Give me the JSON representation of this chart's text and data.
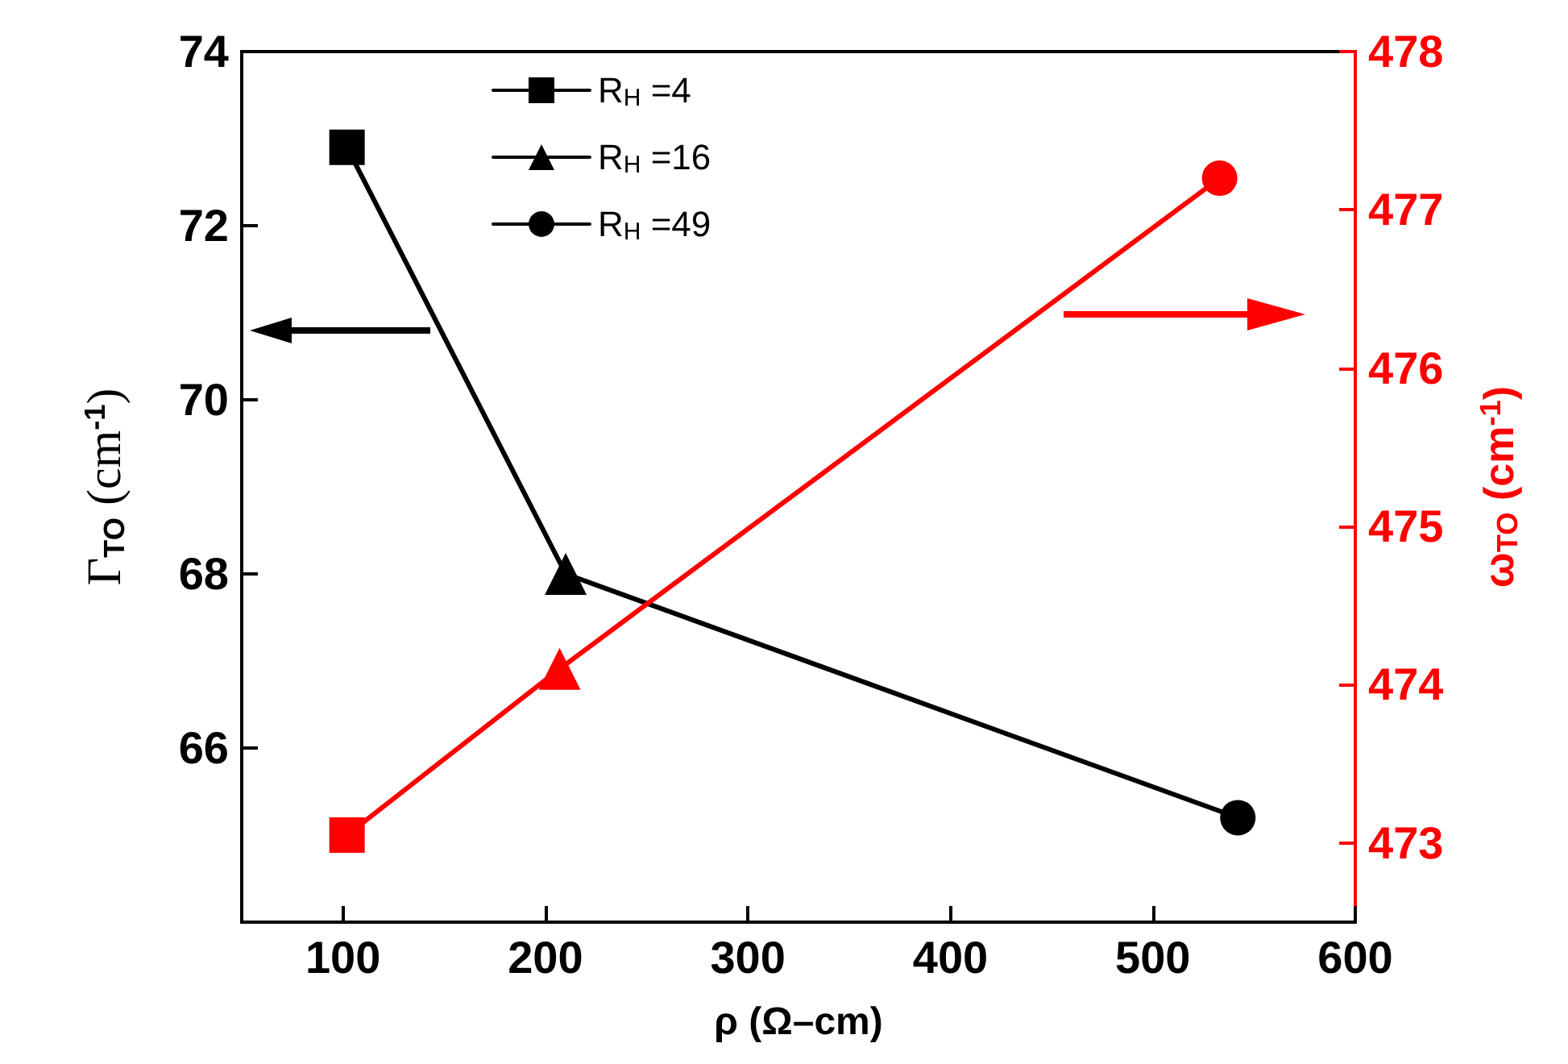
{
  "chart_data": {
    "type": "line",
    "xlabel": "ρ (Ω–cm)",
    "ylabel": "Γ$_{TO}$ (cm$^{-1}$)",
    "y2label": "ω$_{TO}$ (cm$^{-1}$)",
    "xlim": [
      50,
      600
    ],
    "xticks": [
      100,
      200,
      300,
      400,
      500,
      600
    ],
    "ylim": [
      64,
      74
    ],
    "yticks": [
      66,
      68,
      70,
      72,
      74
    ],
    "y2lim": [
      472.5,
      478
    ],
    "y2ticks": [
      473,
      474,
      475,
      476,
      477,
      478
    ],
    "legend": "top",
    "grid": false,
    "line_style": "solid",
    "series": [
      {
        "color": "#000000",
        "marker": "none",
        "x": [
          102,
          210,
          542
        ],
        "values": [
          72.9,
          68.0,
          65.2
        ]
      },
      {
        "color": "#ff0000",
        "marker": "none",
        "axis": "y2",
        "x": [
          102,
          207,
          533
        ],
        "values": [
          473.05,
          474.1,
          477.2
        ]
      },
      {
        "name": "R$_{H}$ =4",
        "color": "#000000",
        "marker": "square",
        "x": [
          102
        ],
        "values": [
          72.9
        ]
      },
      {
        "name": "R$_{H}$ =16",
        "color": "#000000",
        "marker": "triangle",
        "x": [
          210
        ],
        "values": [
          68.0
        ]
      },
      {
        "name": "R$_{H}$ =49",
        "color": "#000000",
        "marker": "circle",
        "x": [
          542
        ],
        "values": [
          65.2
        ]
      },
      {
        "color": "#ff0000",
        "marker": "square",
        "axis": "y2",
        "x": [
          102
        ],
        "values": [
          473.05
        ]
      },
      {
        "color": "#ff0000",
        "marker": "triangle",
        "axis": "y2",
        "x": [
          207
        ],
        "values": [
          474.1
        ]
      },
      {
        "color": "#ff0000",
        "marker": "circle",
        "axis": "y2",
        "x": [
          533
        ],
        "values": [
          477.2
        ]
      }
    ]
  }
}
